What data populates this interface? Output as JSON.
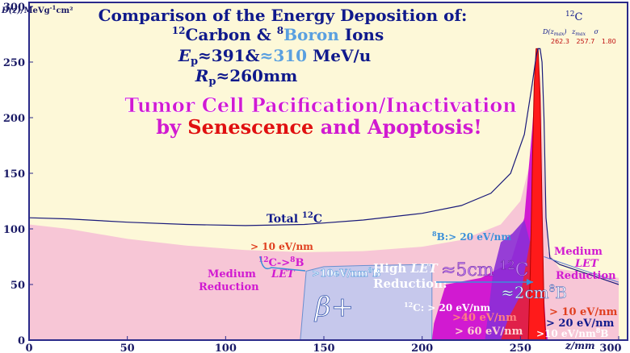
{
  "chart_data": {
    "type": "area",
    "title_line1": "Comparison of the Energy Deposition of:",
    "title_line2_carbon": "Carbon &",
    "title_line2_boron": "Boron",
    "title_line2_ions": "Ions",
    "title_line2_sup1": "12",
    "title_line2_sup2": "8",
    "title_line3_prefix": "E",
    "title_line3_sub": "p",
    "title_line3_value1": "≈391&",
    "title_line3_value2": "≈310",
    "title_line3_unit": "MeV/u",
    "title_line4_prefix": "R",
    "title_line4_sub": "p",
    "title_line4_value": "≈260mm",
    "headline1": "Tumor Cell Pacification/Inactivation",
    "headline2_a": "by",
    "headline2_b": "Senescence",
    "headline2_c": "and Apoptosis!",
    "ylabel_main": "D(z)/",
    "ylabel_unit": "MeVg",
    "ylabel_exp": "-1",
    "ylabel_unit2": "cm²",
    "xlabel": "z/mm",
    "xlim": [
      0,
      300
    ],
    "ylim": [
      0,
      300
    ],
    "xticks": [
      0,
      50,
      100,
      150,
      200,
      250,
      300
    ],
    "yticks": [
      0,
      50,
      100,
      150,
      200,
      250,
      300
    ],
    "total_curve": {
      "name": "Total",
      "x": [
        0,
        20,
        50,
        80,
        110,
        140,
        170,
        200,
        220,
        235,
        245,
        252,
        256,
        258,
        259,
        260,
        261,
        262,
        263,
        265,
        270,
        280,
        290,
        300
      ],
      "y": [
        110,
        109,
        106,
        104,
        103,
        104,
        108,
        114,
        121,
        132,
        150,
        185,
        230,
        255,
        262,
        262,
        250,
        200,
        110,
        74,
        68,
        62,
        56,
        50
      ]
    },
    "peak_table": {
      "col1": "D(z",
      "col1_sub": "max",
      "col1_end": ")",
      "col2": "z",
      "col2_sub": "max",
      "col3": "σ",
      "v1": "262.3",
      "v2": "257.7",
      "v3": "1.80"
    },
    "labels": {
      "total": "Total",
      "c12": "12",
      "c_letter": "C",
      "peak_c12": "12",
      "peak_c": "C",
      "boron_gt20": "B:> 20 eV/nm",
      "boron_sup": "8",
      "gt10_top": "> 10 eV/nm",
      "c_to_b": "C->",
      "c_to_b_sup1": "12",
      "c_to_b_sup2": "8",
      "c_to_b_end": "B",
      "let_left": "LET",
      "medium_left": "Medium",
      "reduction_left": "Reduction",
      "box_10evnm": ">10eV/nm",
      "box_b": "B",
      "box_sup": "8",
      "beta_plus": "β+",
      "high_let_a": "High",
      "high_let_b": "LET",
      "reduction_mid": "Reduction:",
      "five_cm": "≈5cm",
      "five_cm_sup": "12",
      "five_cm_c": "C",
      "two_cm": "≈2cm",
      "two_cm_sup": "8",
      "two_cm_b": "B",
      "c_gt20": "C: > 20 eV/nm",
      "c_sup": "12",
      "gt40": ">40 eV/nm",
      "gt60": "> 60 eV/nm",
      "medium_right": "Medium",
      "let_right": "LET",
      "reduction_right": "Reduction",
      "gt10_right": "> 10 eV/nm",
      "gt20_right": "> 20 eV/nm",
      "gt10_b_right": ">10 eV/nm",
      "b_right_sup": "8",
      "b_right": "B"
    },
    "colors": {
      "background": "#fdf8d8",
      "border": "#2a2a8a",
      "pink_area": "#f7c6d6",
      "lavender_box": "#c6c8ec",
      "magenta": "#d11ad1",
      "purple": "#8b2fd6",
      "crimson": "#e0204a",
      "red": "#ff1a1a",
      "navy": "#101a8c",
      "cyan_text": "#3a8fd9",
      "orange_text": "#e04020"
    }
  }
}
